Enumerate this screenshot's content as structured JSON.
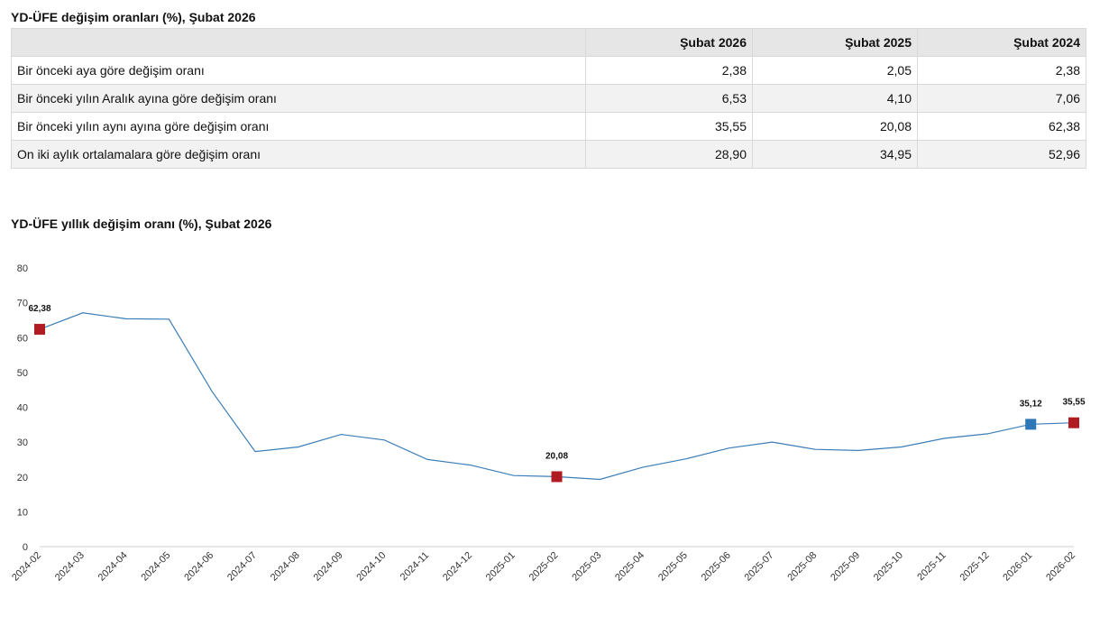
{
  "table": {
    "title": "YD-ÜFE değişim oranları (%), Şubat 2026",
    "headers": [
      "",
      "Şubat 2026",
      "Şubat 2025",
      "Şubat 2024"
    ],
    "rows": [
      {
        "label": "Bir önceki aya göre değişim oranı",
        "values": [
          "2,38",
          "2,05",
          "2,38"
        ]
      },
      {
        "label": "Bir önceki yılın Aralık ayına göre değişim oranı",
        "values": [
          "6,53",
          "4,10",
          "7,06"
        ]
      },
      {
        "label": "Bir önceki yılın aynı ayına göre değişim oranı",
        "values": [
          "35,55",
          "20,08",
          "62,38"
        ]
      },
      {
        "label": "On iki aylık ortalamalara göre değişim oranı",
        "values": [
          "28,90",
          "34,95",
          "52,96"
        ]
      }
    ]
  },
  "chart_data": {
    "type": "line",
    "title": "YD-ÜFE yıllık değişim oranı (%), Şubat 2026",
    "xlabel": "",
    "ylabel": "",
    "ylim": [
      0,
      80
    ],
    "yticks": [
      0,
      10,
      20,
      30,
      40,
      50,
      60,
      70,
      80
    ],
    "categories": [
      "2024-02",
      "2024-03",
      "2024-04",
      "2024-05",
      "2024-06",
      "2024-07",
      "2024-08",
      "2024-09",
      "2024-10",
      "2024-11",
      "2024-12",
      "2025-01",
      "2025-02",
      "2025-03",
      "2025-04",
      "2025-05",
      "2025-06",
      "2025-07",
      "2025-08",
      "2025-09",
      "2025-10",
      "2025-11",
      "2025-12",
      "2026-01",
      "2026-02"
    ],
    "series": [
      {
        "values": [
          62.38,
          67.1,
          65.4,
          65.3,
          44.5,
          27.3,
          28.6,
          32.2,
          30.6,
          25.0,
          23.4,
          20.4,
          20.08,
          19.3,
          22.8,
          25.2,
          28.3,
          30.0,
          27.9,
          27.6,
          28.6,
          31.1,
          32.4,
          35.12,
          35.55
        ]
      }
    ],
    "highlighted_points": [
      {
        "category": "2024-02",
        "value": 62.38,
        "label": "62,38"
      },
      {
        "category": "2025-02",
        "value": 20.08,
        "label": "20,08"
      },
      {
        "category": "2026-01",
        "value": 35.12,
        "label": "35,12"
      },
      {
        "category": "2026-02",
        "value": 35.55,
        "label": "35,55"
      }
    ],
    "colors": {
      "line": "#3a7db7",
      "marker_red": "#b01c22",
      "marker_blue": "#2e78b7"
    },
    "grid": false
  }
}
